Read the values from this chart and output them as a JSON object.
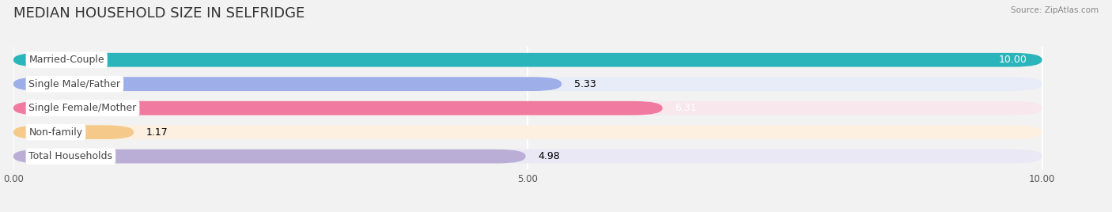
{
  "title": "MEDIAN HOUSEHOLD SIZE IN SELFRIDGE",
  "source": "Source: ZipAtlas.com",
  "categories": [
    "Married-Couple",
    "Single Male/Father",
    "Single Female/Mother",
    "Non-family",
    "Total Households"
  ],
  "values": [
    10.0,
    5.33,
    6.31,
    1.17,
    4.98
  ],
  "bar_colors": [
    "#2ab5bb",
    "#9daee8",
    "#f07aA0",
    "#f5c98a",
    "#baaed6"
  ],
  "bar_bg_colors": [
    "#e8f0f2",
    "#e8ecf8",
    "#f8e8ee",
    "#fdf0e0",
    "#ebe8f5"
  ],
  "value_labels": [
    "10.00",
    "5.33",
    "6.31",
    "1.17",
    "4.98"
  ],
  "value_colors": [
    "white",
    "black",
    "white",
    "black",
    "black"
  ],
  "xlim_max": 10.0,
  "xticks": [
    0.0,
    5.0,
    10.0
  ],
  "xtick_labels": [
    "0.00",
    "5.00",
    "10.00"
  ],
  "background_color": "#f2f2f2",
  "title_fontsize": 13,
  "label_fontsize": 9,
  "value_fontsize": 9
}
